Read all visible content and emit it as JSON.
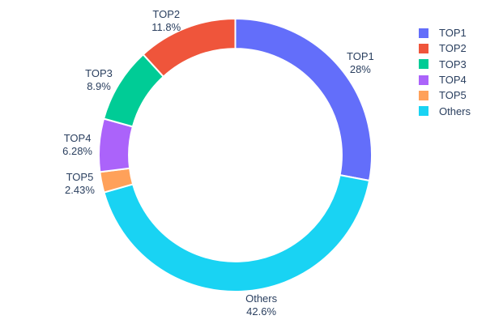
{
  "chart_data": {
    "type": "pie",
    "subtype": "donut",
    "hole_ratio": 0.78,
    "start_angle_deg": 0,
    "direction": "clockwise",
    "background": "#FFFFFF",
    "text_color": "#2A3F5F",
    "slice_border_color": "#FFFFFF",
    "slices": [
      {
        "label": "TOP1",
        "value": 28,
        "percent_label": "28%",
        "color": "#636EFA"
      },
      {
        "label": "Others",
        "value": 42.6,
        "percent_label": "42.6%",
        "color": "#19D3F3"
      },
      {
        "label": "TOP5",
        "value": 2.43,
        "percent_label": "2.43%",
        "color": "#FFA15A"
      },
      {
        "label": "TOP4",
        "value": 6.28,
        "percent_label": "6.28%",
        "color": "#AB63FA"
      },
      {
        "label": "TOP3",
        "value": 8.9,
        "percent_label": "8.9%",
        "color": "#00CC96"
      },
      {
        "label": "TOP2",
        "value": 11.8,
        "percent_label": "11.8%",
        "color": "#EF553B"
      }
    ],
    "legend": [
      {
        "label": "TOP1",
        "color": "#636EFA"
      },
      {
        "label": "TOP2",
        "color": "#EF553B"
      },
      {
        "label": "TOP3",
        "color": "#00CC96"
      },
      {
        "label": "TOP4",
        "color": "#AB63FA"
      },
      {
        "label": "TOP5",
        "color": "#FFA15A"
      },
      {
        "label": "Others",
        "color": "#19D3F3"
      }
    ],
    "legend_position": "top-right",
    "title": ""
  }
}
